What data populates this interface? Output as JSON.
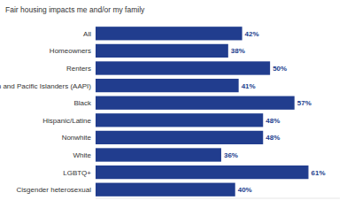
{
  "chart_data": {
    "type": "bar",
    "title": "Fair housing impacts me and/or my family",
    "orientation": "horizontal",
    "categories": [
      "All",
      "Homeowners",
      "Renters",
      "Asian American and Pacific Islanders (AAPI)",
      "Black",
      "Hispanic/Latine",
      "Nonwhite",
      "White",
      "LGBTQ+",
      "Cisgender heterosexual"
    ],
    "values": [
      42,
      38,
      50,
      41,
      57,
      48,
      48,
      36,
      61,
      40
    ],
    "value_labels": [
      "42%",
      "38%",
      "50%",
      "41%",
      "57%",
      "48%",
      "48%",
      "36%",
      "61%",
      "40%"
    ],
    "color": "#213d8e",
    "xlim": [
      0,
      70
    ],
    "data_labels": true,
    "tick_labels": "y",
    "grid": false
  }
}
